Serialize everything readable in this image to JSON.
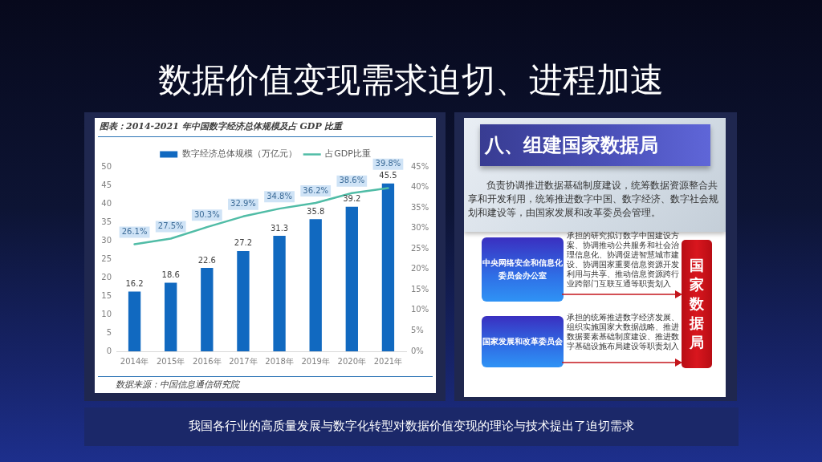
{
  "chart_data": [
    {
      "type": "other",
      "title": "数据价值变现需求迫切、进程加速",
      "annotations": [
        "我国各行业的高质量发展与数字化转型对数据价值变现的理论与技术提出了迫切需求"
      ]
    },
    {
      "type": "bar",
      "title": "图表：2014-2021 年中国数字经济总体规模及占 GDP 比重",
      "categories": [
        "2014年",
        "2015年",
        "2016年",
        "2017年",
        "2018年",
        "2019年",
        "2020年",
        "2021年"
      ],
      "series": [
        {
          "name": "数字经济总体规模（万亿元）",
          "color": "#1169c0",
          "values": [
            16.2,
            18.6,
            22.6,
            27.2,
            31.3,
            35.8,
            39.2,
            45.5
          ],
          "value_labels": [
            "16.2",
            "18.6",
            "22.6",
            "27.2",
            "31.3",
            "35.8",
            "39.2",
            "45.5"
          ]
        },
        {
          "name": "占GDP比重",
          "type": "line",
          "axis": "y2",
          "color": "#50bca6",
          "values": [
            26.1,
            27.5,
            30.3,
            32.9,
            34.8,
            36.2,
            38.6,
            39.8
          ],
          "value_labels": [
            "26.1%",
            "27.5%",
            "30.3%",
            "32.9%",
            "34.8%",
            "36.2%",
            "38.6%",
            "39.8%"
          ]
        }
      ],
      "ylim": [
        0,
        50
      ],
      "yticks": [
        0,
        5,
        10,
        15,
        20,
        25,
        30,
        35,
        40,
        45,
        50
      ],
      "y2lim": [
        0,
        45
      ],
      "y2ticks": [
        {
          "value": 0,
          "label": "0%"
        },
        {
          "value": 5,
          "label": "5%"
        },
        {
          "value": 10,
          "label": "10%"
        },
        {
          "value": 15,
          "label": "15%"
        },
        {
          "value": 20,
          "label": "20%"
        },
        {
          "value": 25,
          "label": "25%"
        },
        {
          "value": 30,
          "label": "30%"
        },
        {
          "value": 35,
          "label": "35%"
        },
        {
          "value": 40,
          "label": "40%"
        },
        {
          "value": 45,
          "label": "45%"
        }
      ],
      "legend": "top",
      "grid": false,
      "marker": "none",
      "annotations": [
        "数据来源：中国信息通信研究院"
      ]
    },
    {
      "type": "other",
      "title": "八、组建国家数据局",
      "annotations": [
        "负责协调推进数据基础制度建设，统筹数据资源整合共享和开发利用，统筹推进数字中国、数字经济、数字社会规划和建设等，由国家发展和改革委员会管理。",
        "中央网络安全和信息化委员会办公室",
        "承担的研究拟订数字中国建设方案、协调推动公共服务和社会治理信息化、协调促进智慧城市建设、协调国家重要信息资源开发利用与共享、推动信息资源跨行业跨部门互联互通等职责划入",
        "国家发展和改革委员会",
        "承担的统筹推进数字经济发展、组织实施国家大数据战略、推进数据要素基础制度建设、推进数字基础设施布局建设等职责划入",
        "国家数据局"
      ]
    }
  ]
}
